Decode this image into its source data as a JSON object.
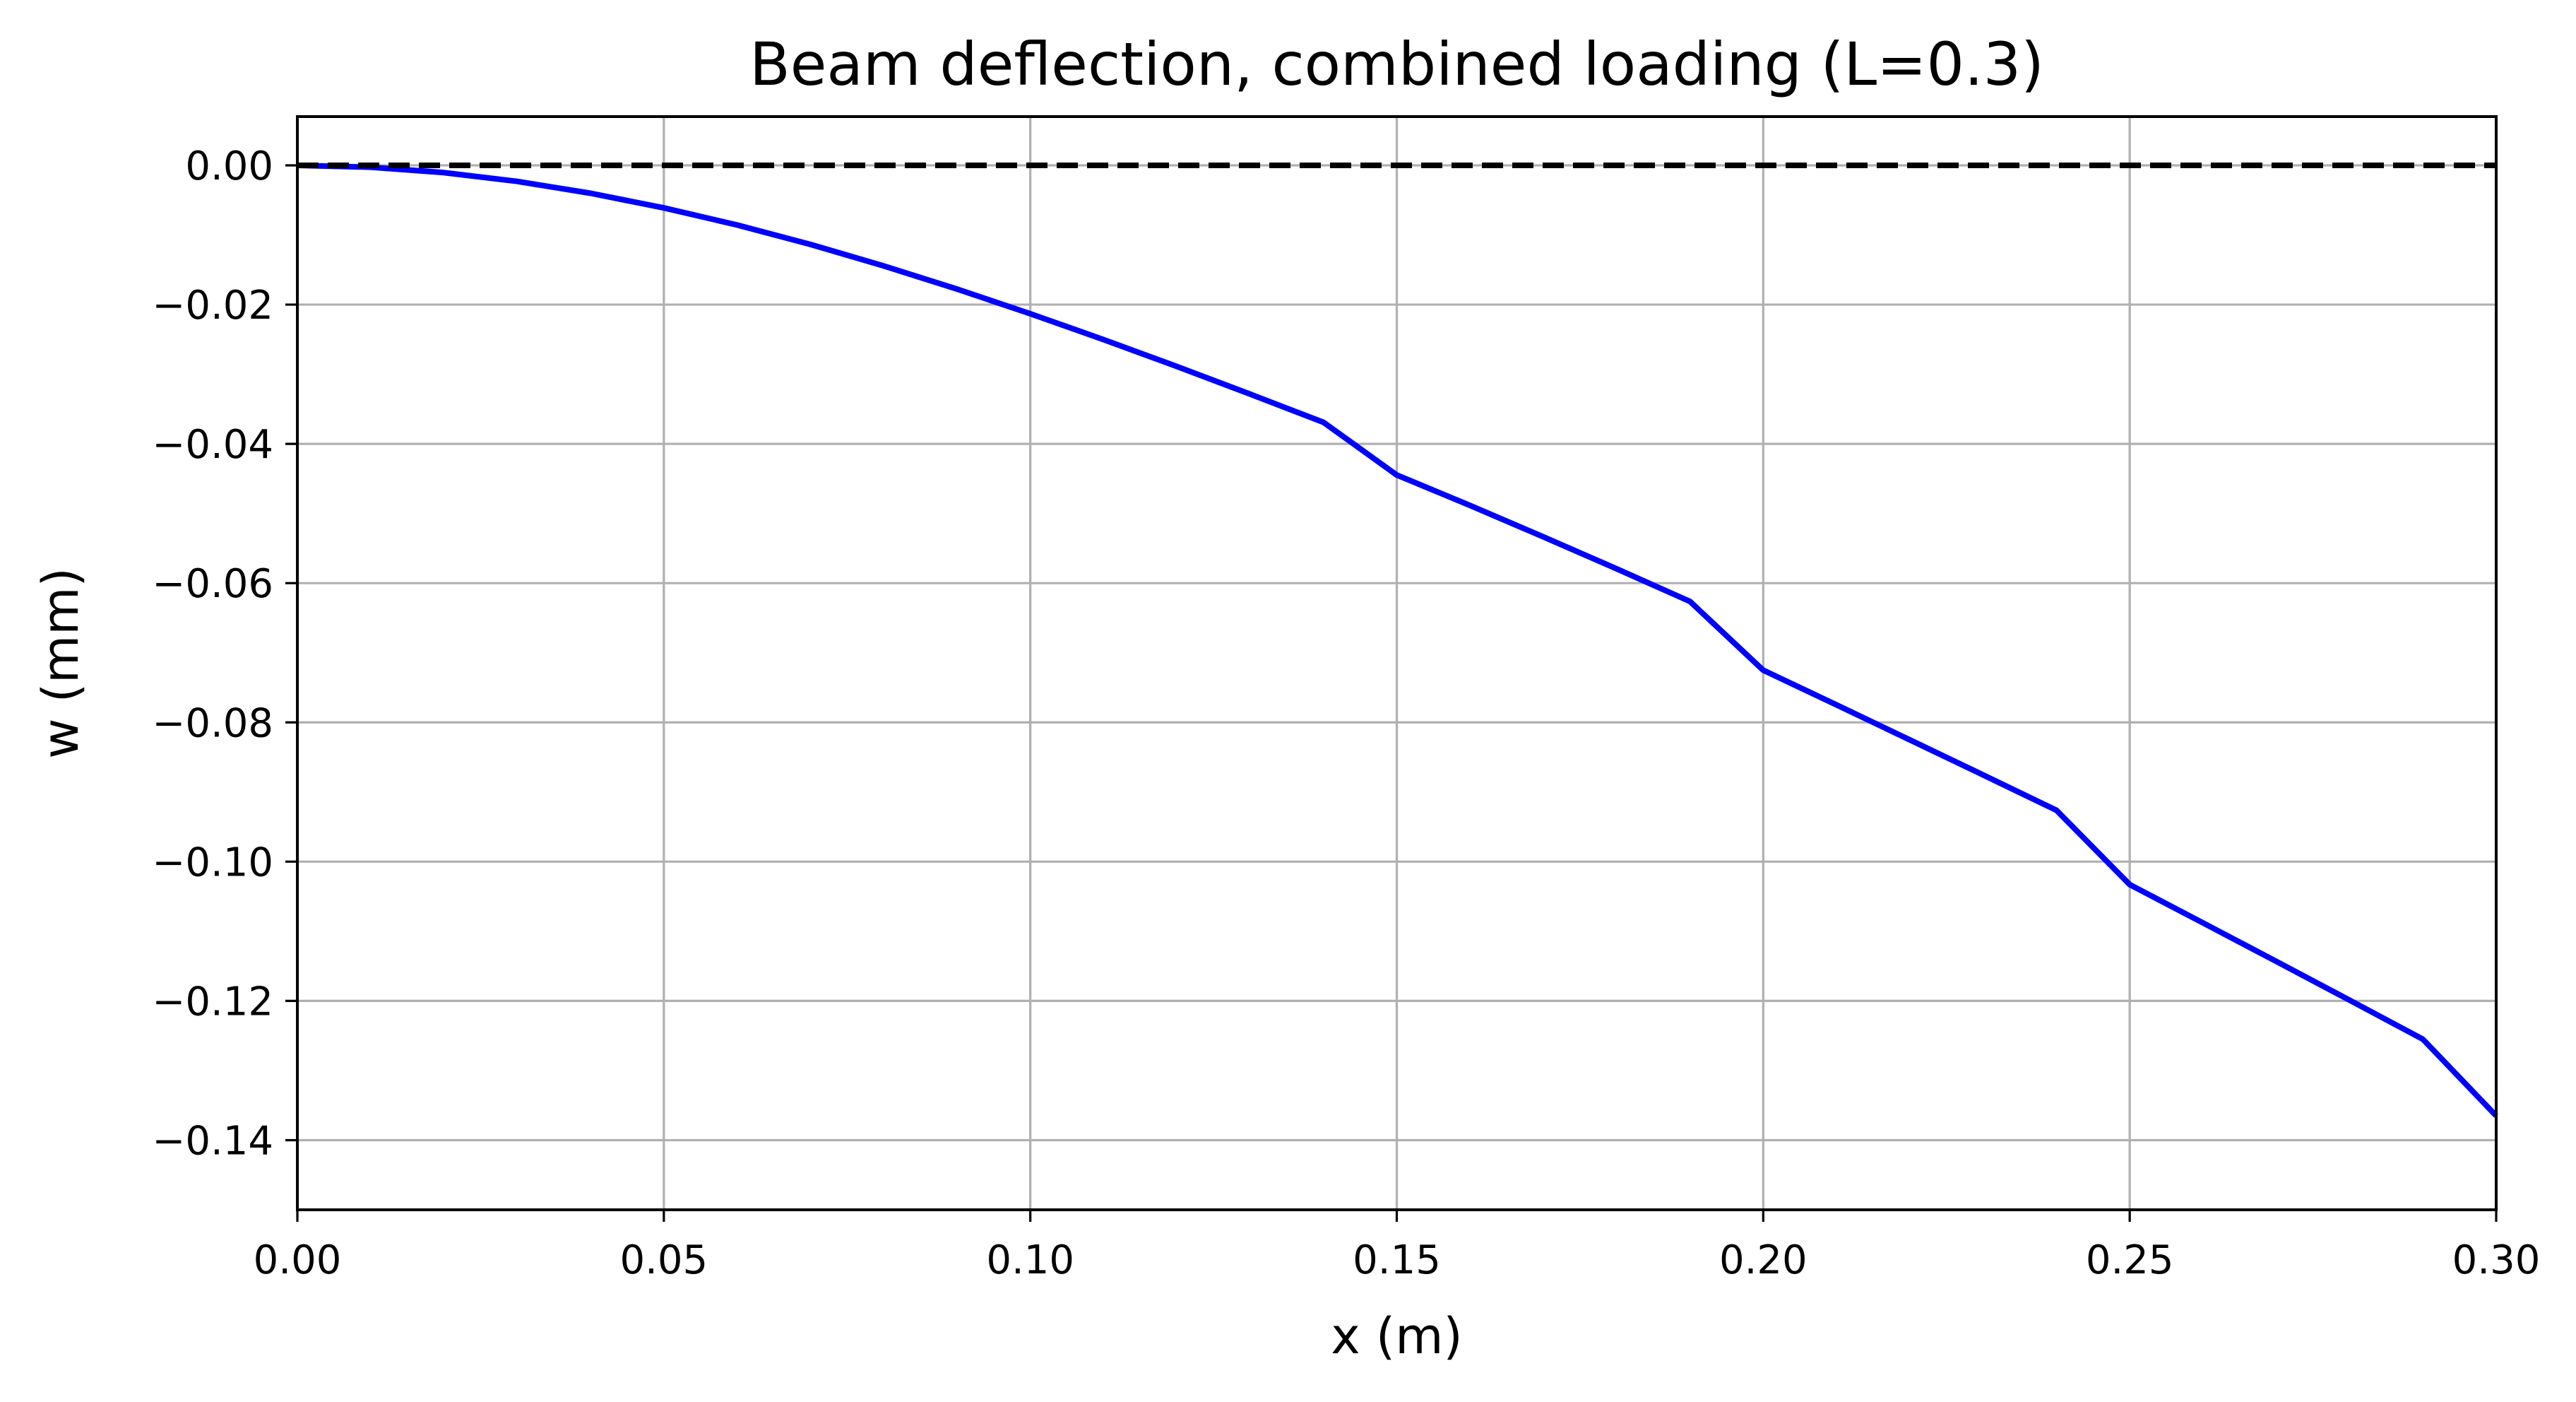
{
  "chart_data": {
    "type": "line",
    "title": "Beam deflection, combined loading (L=0.3)",
    "xlabel": "x (m)",
    "ylabel": "w (mm)",
    "xlim": [
      0.0,
      0.3
    ],
    "ylim": [
      -0.15,
      0.007
    ],
    "x_ticks": [
      0.0,
      0.05,
      0.1,
      0.15,
      0.2,
      0.25,
      0.3
    ],
    "x_tick_labels": [
      "0.00",
      "0.05",
      "0.10",
      "0.15",
      "0.20",
      "0.25",
      "0.30"
    ],
    "y_ticks": [
      0.0,
      -0.02,
      -0.04,
      -0.06,
      -0.08,
      -0.1,
      -0.12,
      -0.14
    ],
    "y_tick_labels": [
      "0.00",
      "−0.02",
      "−0.04",
      "−0.06",
      "−0.08",
      "−0.10",
      "−0.12",
      "−0.14"
    ],
    "grid": true,
    "legend": false,
    "series": [
      {
        "style": "solid",
        "color": "#0000ff",
        "x": [
          0.0,
          0.01,
          0.02,
          0.03,
          0.04,
          0.05,
          0.06,
          0.07,
          0.08,
          0.09,
          0.1,
          0.11,
          0.12,
          0.13,
          0.14,
          0.15,
          0.16,
          0.17,
          0.18,
          0.19,
          0.2,
          0.21,
          0.22,
          0.23,
          0.24,
          0.25,
          0.26,
          0.27,
          0.28,
          0.29,
          0.3
        ],
        "y": [
          0.0,
          -0.00027,
          -0.00105,
          -0.00231,
          -0.00401,
          -0.00611,
          -0.00857,
          -0.01136,
          -0.01444,
          -0.01777,
          -0.02131,
          -0.02503,
          -0.02889,
          -0.03286,
          -0.0369,
          -0.04447,
          -0.04885,
          -0.05335,
          -0.05794,
          -0.06263,
          -0.0725,
          -0.07749,
          -0.08251,
          -0.08755,
          -0.09262,
          -0.1033,
          -0.1088,
          -0.11433,
          -0.1199,
          -0.1255,
          -0.1365
        ]
      },
      {
        "style": "dashed",
        "color": "#000000",
        "x": [
          0.0,
          0.3
        ],
        "y": [
          0.0,
          0.0
        ]
      }
    ]
  }
}
